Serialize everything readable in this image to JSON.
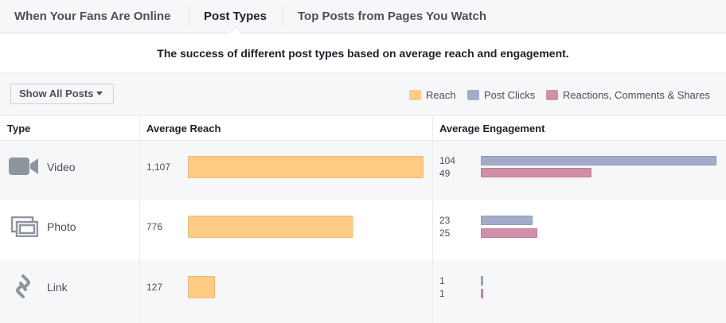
{
  "tabs": [
    {
      "label": "When Your Fans Are Online",
      "active": false
    },
    {
      "label": "Post Types",
      "active": true
    },
    {
      "label": "Top Posts from Pages You Watch",
      "active": false
    }
  ],
  "subtitle": "The success of different post types based on average reach and engagement.",
  "filter": {
    "label": "Show All Posts"
  },
  "legend": [
    {
      "label": "Reach",
      "color": "#ffcb85"
    },
    {
      "label": "Post Clicks",
      "color": "#a2acc9"
    },
    {
      "label": "Reactions, Comments & Shares",
      "color": "#d190a8"
    }
  ],
  "table": {
    "headers": {
      "type": "Type",
      "reach": "Average Reach",
      "engagement": "Average Engagement"
    },
    "max_reach": 1107,
    "max_engagement": 104,
    "rows": [
      {
        "type": "Video",
        "icon": "video-camera-icon",
        "reach": 1107,
        "reach_label": "1,107",
        "clicks": 104,
        "clicks_label": "104",
        "reactions": 49,
        "reactions_label": "49"
      },
      {
        "type": "Photo",
        "icon": "photo-stack-icon",
        "reach": 776,
        "reach_label": "776",
        "clicks": 23,
        "clicks_label": "23",
        "reactions": 25,
        "reactions_label": "25"
      },
      {
        "type": "Link",
        "icon": "chain-link-icon",
        "reach": 127,
        "reach_label": "127",
        "clicks": 1,
        "clicks_label": "1",
        "reactions": 1,
        "reactions_label": "1"
      }
    ]
  }
}
